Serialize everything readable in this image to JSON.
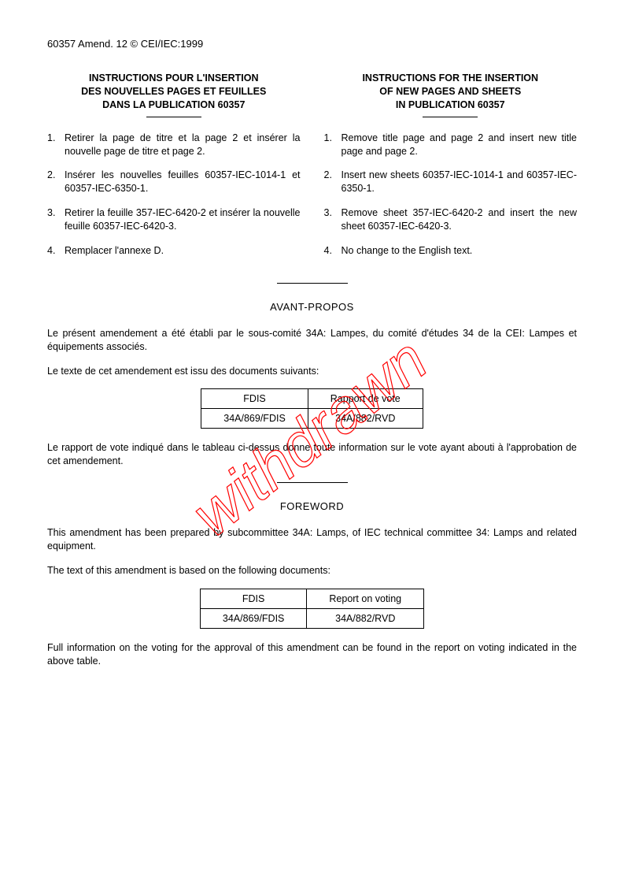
{
  "header": "60357 Amend. 12 © CEI/IEC:1999",
  "watermark": {
    "text": "withdrawn",
    "color": "#ff0000",
    "stroke_width": 1.2,
    "font_size": 78,
    "rotate_deg": -38
  },
  "columns": {
    "left": {
      "title_l1": "INSTRUCTIONS POUR L'INSERTION",
      "title_l2": "DES NOUVELLES PAGES ET FEUILLES",
      "title_l3": "DANS LA PUBLICATION 60357",
      "items": [
        "Retirer la page de titre et la page 2 et insérer la nouvelle page de titre et page 2.",
        "Insérer les nouvelles feuilles 60357-IEC-1014-1 et 60357-IEC-6350-1.",
        "Retirer la feuille 357-IEC-6420-2 et insérer la nouvelle feuille 60357-IEC-6420-3.",
        "Remplacer l'annexe D."
      ]
    },
    "right": {
      "title_l1": "INSTRUCTIONS FOR THE INSERTION",
      "title_l2": "OF NEW PAGES AND SHEETS",
      "title_l3": "IN PUBLICATION 60357",
      "items": [
        "Remove title page and page 2 and insert new title page and page 2.",
        "Insert new sheets 60357-IEC-1014-1 and 60357-IEC-6350-1.",
        "Remove sheet 357-IEC-6420-2 and insert the new sheet 60357-IEC-6420-3.",
        "No change to the English text."
      ]
    }
  },
  "avant_propos": {
    "title": "AVANT-PROPOS",
    "p1": "Le présent amendement a été établi par le sous-comité 34A: Lampes, du comité d'études 34 de la CEI: Lampes et équipements associés.",
    "p2": "Le texte de cet amendement est issu des documents suivants:",
    "p3": "Le rapport de vote indiqué dans le tableau ci-dessus donne toute information sur le vote ayant abouti à l'approbation de cet amendement.",
    "table": {
      "h1": "FDIS",
      "h2": "Rapport de vote",
      "c1": "34A/869/FDIS",
      "c2": "34A/882/RVD"
    }
  },
  "foreword": {
    "title": "FOREWORD",
    "p1": "This amendment has been prepared by subcommittee 34A: Lamps, of IEC technical committee 34: Lamps and related equipment.",
    "p2": "The text of this amendment is based on the following documents:",
    "p3": "Full information on the voting for the approval of this amendment can be found in the report on voting indicated in the above table.",
    "table": {
      "h1": "FDIS",
      "h2": "Report on voting",
      "c1": "34A/869/FDIS",
      "c2": "34A/882/RVD"
    }
  }
}
